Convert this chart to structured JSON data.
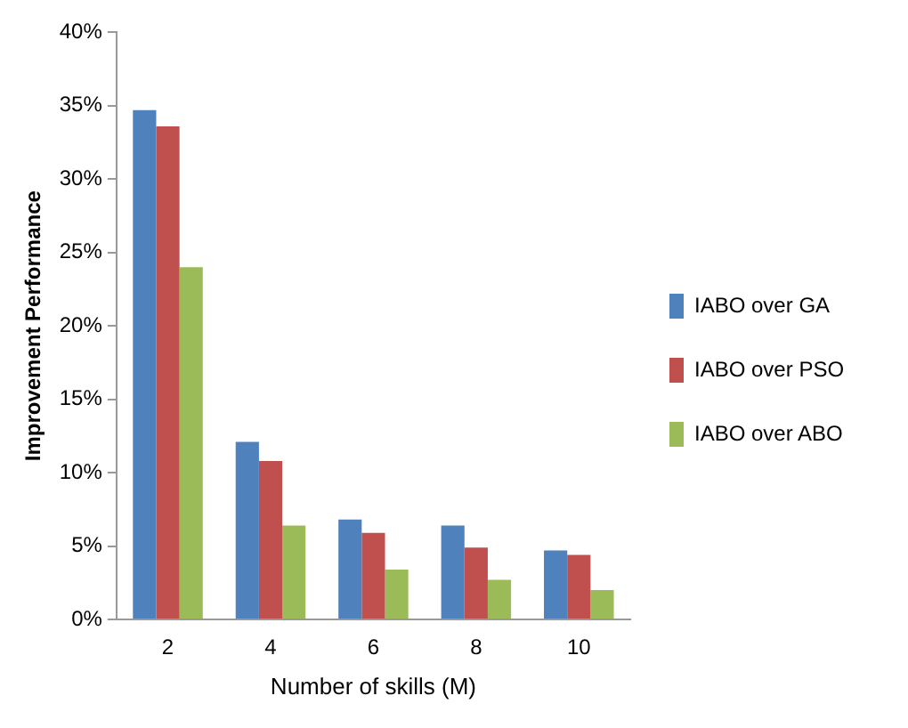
{
  "chart_data": {
    "type": "bar",
    "xlabel": "Number of skills (M)",
    "ylabel": "Improvement Performance",
    "categories": [
      "2",
      "4",
      "6",
      "8",
      "10"
    ],
    "series": [
      {
        "name": "IABO over GA",
        "color": "#4f81bd",
        "values": [
          34.7,
          12.1,
          6.8,
          6.4,
          4.7
        ]
      },
      {
        "name": "IABO over PSO",
        "color": "#c0504d",
        "values": [
          33.6,
          10.8,
          5.9,
          4.9,
          4.4
        ]
      },
      {
        "name": "IABO over ABO",
        "color": "#9bbb59",
        "values": [
          24.0,
          6.4,
          3.4,
          2.7,
          2.0
        ]
      }
    ],
    "ylim": [
      0,
      40
    ],
    "yticks": [
      {
        "value": 0,
        "label": "0%"
      },
      {
        "value": 5,
        "label": "5%"
      },
      {
        "value": 10,
        "label": "10%"
      },
      {
        "value": 15,
        "label": "15%"
      },
      {
        "value": 20,
        "label": "20%"
      },
      {
        "value": 25,
        "label": "25%"
      },
      {
        "value": 30,
        "label": "30%"
      },
      {
        "value": 35,
        "label": "35%"
      },
      {
        "value": 40,
        "label": "40%"
      }
    ],
    "grid": false,
    "legend": "right"
  }
}
